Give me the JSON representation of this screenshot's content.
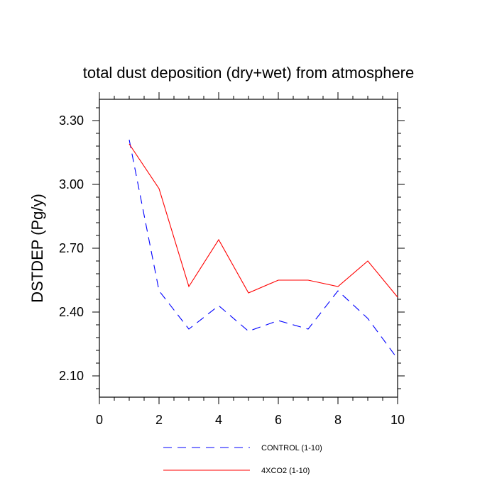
{
  "chart_data": {
    "type": "line",
    "title": "total dust deposition (dry+wet) from atmosphere",
    "xlabel": "",
    "ylabel": "DSTDEP  (Pg/y)",
    "xlim": [
      0,
      10
    ],
    "ylim": [
      2.0,
      3.4
    ],
    "x_ticks": [
      0,
      2,
      4,
      6,
      8,
      10
    ],
    "x_tick_labels": [
      "0",
      "2",
      "4",
      "6",
      "8",
      "10"
    ],
    "y_ticks": [
      2.1,
      2.4,
      2.7,
      3.0,
      3.3
    ],
    "y_tick_labels": [
      "2.10",
      "2.40",
      "2.70",
      "3.00",
      "3.30"
    ],
    "grid": false,
    "legend_position": "bottom",
    "x": [
      1,
      2,
      3,
      4,
      5,
      6,
      7,
      8,
      9,
      10
    ],
    "series": [
      {
        "name": "CONTROL (1-10)",
        "color": "#0000ff",
        "dash": "dashed",
        "values": [
          3.21,
          2.5,
          2.32,
          2.43,
          2.31,
          2.36,
          2.32,
          2.5,
          2.37,
          2.18
        ]
      },
      {
        "name": "4XCO2 (1-10)",
        "color": "#ff0000",
        "dash": "solid",
        "values": [
          3.19,
          2.98,
          2.52,
          2.74,
          2.49,
          2.55,
          2.55,
          2.52,
          2.64,
          2.47
        ]
      }
    ]
  }
}
